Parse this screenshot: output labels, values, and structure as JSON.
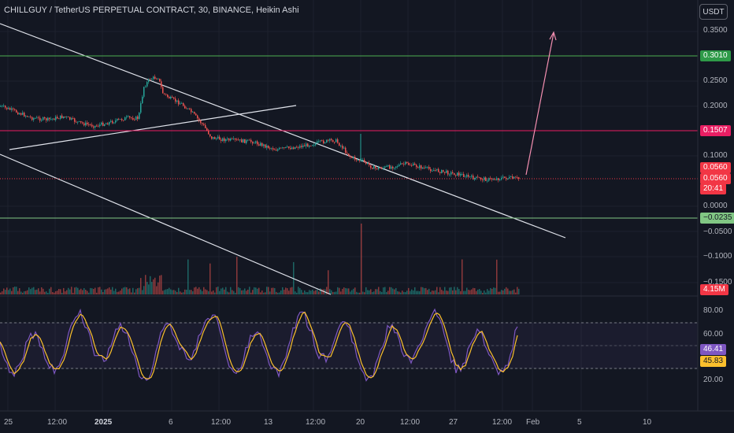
{
  "header": {
    "title": "CHILLGUY / TetherUS PERPETUAL CONTRACT, 30, BINANCE, Heikin Ashi",
    "currency_button": "USDT"
  },
  "price_axis": {
    "ticks": [
      "0.3500",
      "0.2500",
      "0.2000",
      "0.1000",
      "0.0000",
      "−0.0500",
      "−0.1000",
      "−0.1500"
    ]
  },
  "price_labels": {
    "resistance_top": {
      "value": "0.3010",
      "color": "#2e9a48"
    },
    "resistance_mid": {
      "value": "0.1507",
      "color": "#e91e63"
    },
    "last_price": {
      "value": "0.0560",
      "color": "#f23645"
    },
    "bar_close": {
      "value": "0.0560",
      "color": "#f23645"
    },
    "countdown": {
      "value": "20:41",
      "color": "#f23645"
    },
    "support_bottom": {
      "value": "−0.0235",
      "color": "#81c784"
    },
    "volume": {
      "value": "4.15M",
      "color": "#f23645"
    }
  },
  "rsi_axis": {
    "ticks": [
      "80.00",
      "60.00",
      "20.00"
    ],
    "stoch_k": {
      "value": "46.41",
      "color": "#7e57c2"
    },
    "stoch_d": {
      "value": "45.83",
      "color": "#fbc02d"
    }
  },
  "time_axis": {
    "ticks": [
      "25",
      "12:00",
      "2025",
      "6",
      "12:00",
      "13",
      "12:00",
      "20",
      "12:00",
      "27",
      "12:00",
      "Feb",
      "5",
      "10"
    ]
  },
  "colors": {
    "background": "#131722",
    "up_candle": "#26a69a",
    "down_candle": "#ef5350",
    "trend_lines": "#e0e3eb",
    "projection_arrow": "#f48fb1"
  }
}
